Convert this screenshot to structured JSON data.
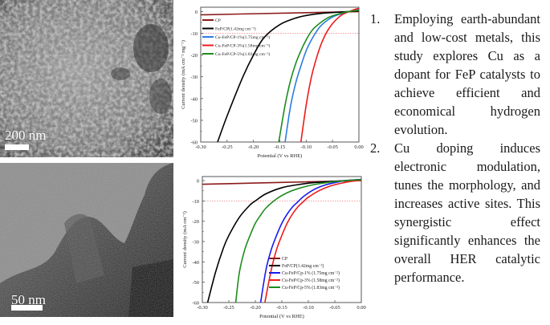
{
  "figure": {
    "sem_image": {
      "scale_label": "200 nm",
      "type": "SEM micrograph"
    },
    "tem_image": {
      "scale_label": "50 nm",
      "type": "TEM micrograph"
    }
  },
  "charts": {
    "top": {
      "xlabel": "Potential (V vs RHE)",
      "ylabel": "Current density (mA cm⁻² mg⁻¹)",
      "legend": [
        {
          "label": "CP",
          "color": "#8b1a1a"
        },
        {
          "label": "FeP/CP(1.42mg cm⁻²)",
          "color": "#000000"
        },
        {
          "label": "Cu-FeP/CP-1%(1.75mg cm⁻²)",
          "color": "#2a7de1"
        },
        {
          "label": "Cu-FeP/CP-3%(1.58mg cm⁻²)",
          "color": "#ee1c1c"
        },
        {
          "label": "Cu-FeP/CP-5%(1.83mg cm⁻²)",
          "color": "#1e8c1e"
        }
      ]
    },
    "bottom": {
      "xlabel": "Potential (V vs RHE)",
      "ylabel": "Current density (mA cm⁻²)",
      "legend": [
        {
          "label": "CP",
          "color": "#8b1a1a"
        },
        {
          "label": "FeP/CP(1.42mg cm⁻²)",
          "color": "#000000"
        },
        {
          "label": "Cu-FeP/Cp-1% (1.75mg cm⁻²)",
          "color": "#1a1aee"
        },
        {
          "label": "Cu-FeP/Cp-3% (1.58mg cm⁻²)",
          "color": "#ee1c1c"
        },
        {
          "label": "Cu-FeP/Cp-5% (1.83mg cm⁻²)",
          "color": "#1e8c1e"
        }
      ]
    }
  },
  "chart_data": [
    {
      "type": "line",
      "title": "",
      "xlabel": "Potential (V vs RHE)",
      "ylabel": "Current density (mA cm⁻² mg⁻¹)",
      "xlim": [
        -0.3,
        0.0
      ],
      "ylim": [
        -60,
        2
      ],
      "xticks": [
        "-0.30",
        "-0.25",
        "-0.20",
        "-0.15",
        "-0.10",
        "-0.05",
        "0.00"
      ],
      "yticks": [
        "0",
        "-10",
        "-20",
        "-30",
        "-40",
        "-50",
        "-60"
      ],
      "reference_line": {
        "y": -10,
        "style": "dotted",
        "color": "#f08080"
      },
      "legend_position": "upper left",
      "series": [
        {
          "name": "CP",
          "x": [
            -0.3,
            -0.2,
            -0.1,
            0.0
          ],
          "y": [
            -1.5,
            -1.0,
            -0.5,
            0.0
          ]
        },
        {
          "name": "FeP/CP(1.42mg cm-2)",
          "x": [
            -0.268,
            -0.25,
            -0.22,
            -0.2,
            -0.18,
            -0.15,
            -0.12,
            -0.1,
            -0.07,
            -0.04,
            -0.02,
            0.0
          ],
          "y": [
            -60,
            -48,
            -30,
            -20,
            -12,
            -6,
            -3,
            -1.8,
            -0.8,
            -0.3,
            0.0,
            0.3
          ]
        },
        {
          "name": "Cu-FeP/CP-1%(1.75mg cm-2)",
          "x": [
            -0.14,
            -0.13,
            -0.12,
            -0.11,
            -0.1,
            -0.09,
            -0.08,
            -0.07,
            -0.05,
            -0.03,
            -0.01,
            0.0
          ],
          "y": [
            -60,
            -44,
            -33,
            -25,
            -18,
            -13,
            -9,
            -6,
            -2.5,
            -0.8,
            0.5,
            1.0
          ]
        },
        {
          "name": "Cu-FeP/CP-3%(1.58mg cm-2)",
          "x": [
            -0.11,
            -0.1,
            -0.09,
            -0.08,
            -0.07,
            -0.06,
            -0.05,
            -0.04,
            -0.03,
            -0.01,
            0.0
          ],
          "y": [
            -60,
            -43,
            -30,
            -21,
            -14,
            -9,
            -5.5,
            -3,
            -1.2,
            0.8,
            1.5
          ]
        },
        {
          "name": "Cu-FeP/CP-5%(1.83mg cm-2)",
          "x": [
            -0.152,
            -0.14,
            -0.13,
            -0.12,
            -0.11,
            -0.1,
            -0.09,
            -0.08,
            -0.06,
            -0.04,
            -0.02,
            0.0
          ],
          "y": [
            -60,
            -43,
            -32,
            -24,
            -18,
            -13,
            -9,
            -6.5,
            -3,
            -1.2,
            0.0,
            0.6
          ]
        }
      ]
    },
    {
      "type": "line",
      "title": "",
      "xlabel": "Potential (V vs RHE)",
      "ylabel": "Current density (mA cm⁻²)",
      "xlim": [
        -0.3,
        0.0
      ],
      "ylim": [
        -60,
        2
      ],
      "xticks": [
        "-0.30",
        "-0.25",
        "-0.20",
        "-0.15",
        "-0.10",
        "-0.05",
        "0.00"
      ],
      "yticks": [
        "0",
        "-10",
        "-20",
        "-30",
        "-40",
        "-50",
        "-60"
      ],
      "reference_line": {
        "y": -10,
        "style": "dotted",
        "color": "#f08080"
      },
      "legend_position": "lower right",
      "series": [
        {
          "name": "CP",
          "x": [
            -0.3,
            -0.2,
            -0.1,
            0.0
          ],
          "y": [
            -1.8,
            -1.2,
            -0.6,
            0.0
          ]
        },
        {
          "name": "FeP/CP(1.42mg cm-2)",
          "x": [
            -0.29,
            -0.275,
            -0.26,
            -0.25,
            -0.23,
            -0.21,
            -0.2,
            -0.18,
            -0.15,
            -0.12,
            -0.09,
            -0.05,
            -0.02,
            0.0
          ],
          "y": [
            -60,
            -45,
            -33,
            -27,
            -18,
            -12,
            -10,
            -6.5,
            -3.5,
            -2.0,
            -1.0,
            -0.3,
            0.2,
            0.5
          ]
        },
        {
          "name": "Cu-FeP/Cp-1% (1.75mg cm-2)",
          "x": [
            -0.19,
            -0.18,
            -0.17,
            -0.16,
            -0.15,
            -0.14,
            -0.13,
            -0.12,
            -0.11,
            -0.09,
            -0.07,
            -0.05,
            -0.03,
            0.0
          ],
          "y": [
            -60,
            -44,
            -34,
            -27,
            -21,
            -16.5,
            -13,
            -10.5,
            -8,
            -4.5,
            -2.3,
            -1.0,
            0.0,
            0.6
          ]
        },
        {
          "name": "Cu-FeP/Cp-3% (1.58mg cm-2)",
          "x": [
            -0.182,
            -0.17,
            -0.16,
            -0.15,
            -0.14,
            -0.13,
            -0.12,
            -0.11,
            -0.1,
            -0.08,
            -0.06,
            -0.04,
            -0.02,
            0.0
          ],
          "y": [
            -60,
            -44,
            -34,
            -27,
            -21,
            -16.5,
            -13,
            -10.5,
            -8.2,
            -5,
            -2.8,
            -1.4,
            -0.4,
            0.2
          ]
        },
        {
          "name": "Cu-FeP/Cp-5% (1.83mg cm-2)",
          "x": [
            -0.237,
            -0.23,
            -0.22,
            -0.21,
            -0.2,
            -0.19,
            -0.18,
            -0.16,
            -0.14,
            -0.12,
            -0.09,
            -0.06,
            -0.03,
            0.0
          ],
          "y": [
            -60,
            -45,
            -34,
            -27,
            -21,
            -17,
            -13.5,
            -9,
            -6,
            -4,
            -2,
            -0.8,
            0.0,
            0.5
          ]
        }
      ]
    }
  ],
  "text_points": [
    {
      "num": "1.",
      "text": "Employing earth-abundant and low-cost metals, this study explores Cu as a dopant for FeP catalysts to achieve efficient and economical hydrogen evolution."
    },
    {
      "num": "2.",
      "text": "Cu doping induces electronic modulation, tunes the morphology, and increases active sites. This synergistic effect significantly enhances the overall HER catalytic performance."
    }
  ]
}
